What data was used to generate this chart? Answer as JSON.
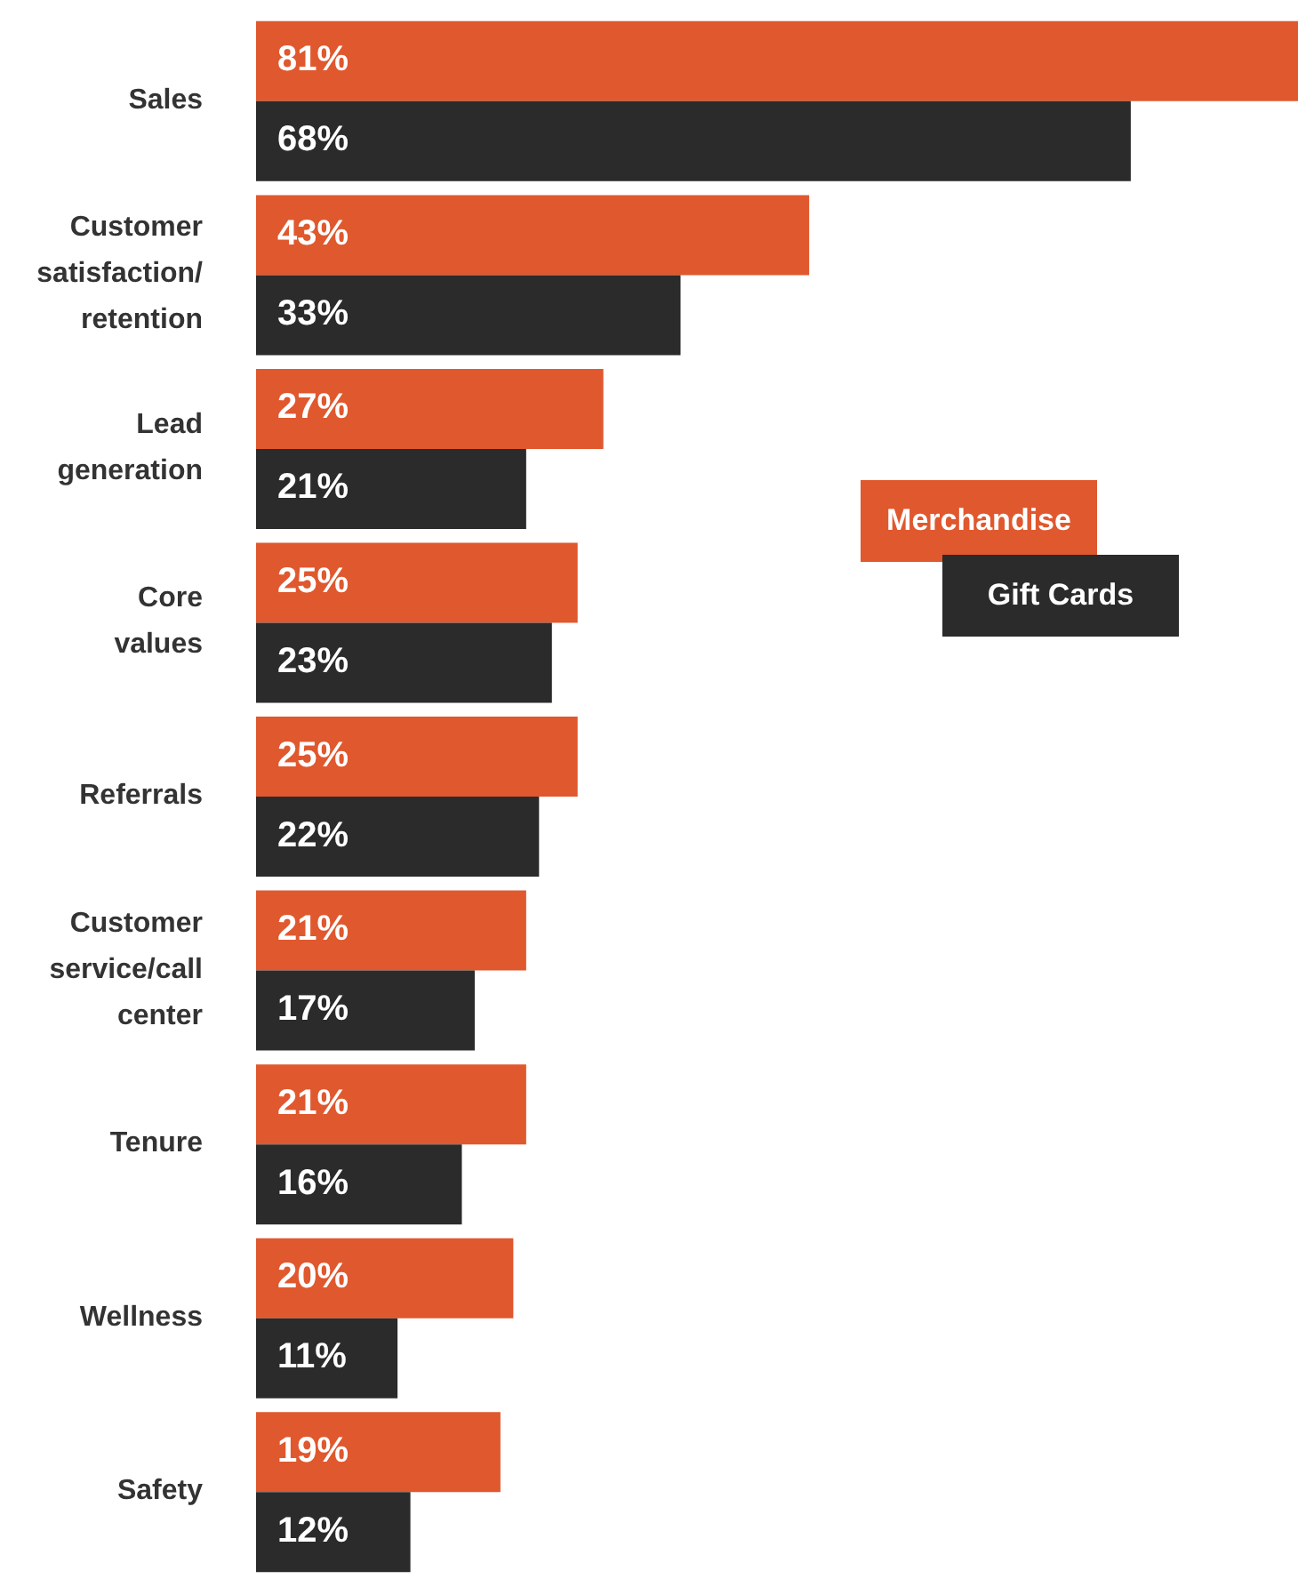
{
  "chart_data": {
    "type": "bar",
    "orientation": "horizontal",
    "categories": [
      "Sales",
      "Customer satisfaction/retention",
      "Lead generation",
      "Core values",
      "Referrals",
      "Customer service/call center",
      "Tenure",
      "Wellness",
      "Safety"
    ],
    "series": [
      {
        "name": "Merchandise",
        "color": "#e0582e",
        "values": [
          81,
          43,
          27,
          25,
          25,
          21,
          21,
          20,
          19
        ],
        "value_labels": [
          "81%",
          "43%",
          "27%",
          "25%",
          "25%",
          "21%",
          "21%",
          "20%",
          "19%"
        ]
      },
      {
        "name": "Gift Cards",
        "color": "#2b2b2b",
        "values": [
          68,
          33,
          21,
          23,
          22,
          17,
          16,
          11,
          12
        ],
        "value_labels": [
          "68%",
          "33%",
          "21%",
          "23%",
          "22%",
          "17%",
          "16%",
          "11%",
          "12%"
        ]
      }
    ],
    "legend": "right",
    "data_labels": true
  }
}
